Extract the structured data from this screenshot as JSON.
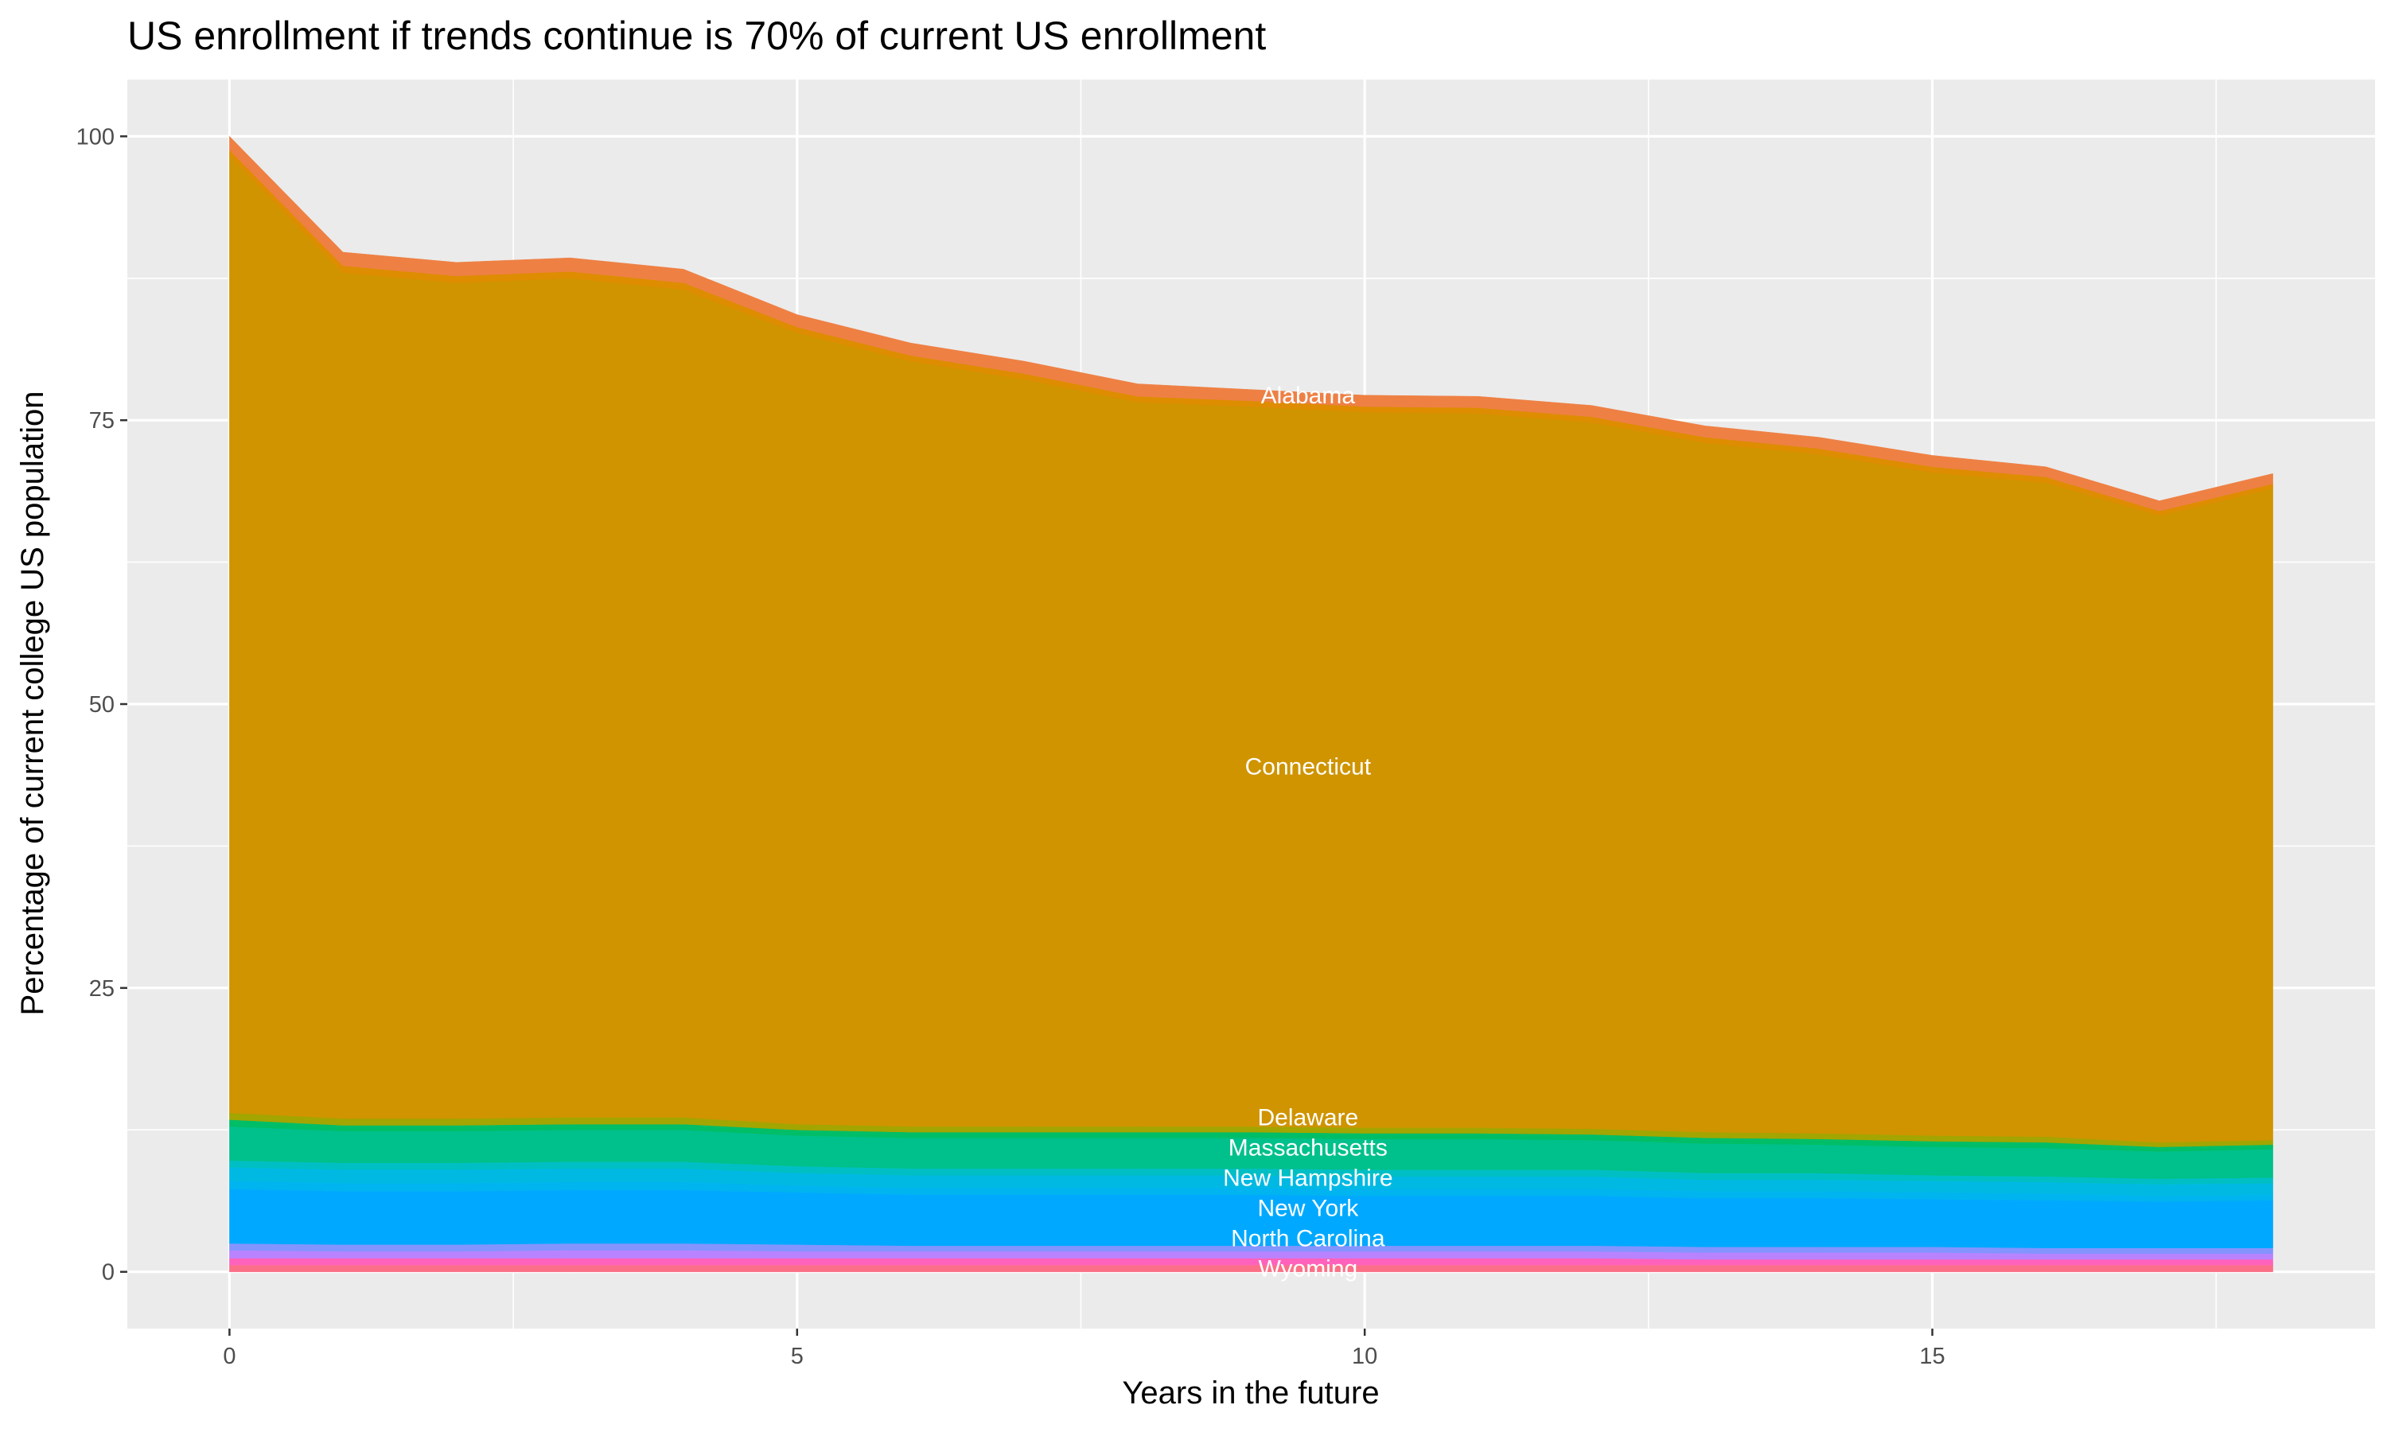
{
  "chart_data": {
    "type": "area",
    "stacked": true,
    "title": "US enrollment if trends continue is 70% of current US enrollment",
    "xlabel": "Years in the future",
    "ylabel": "Percentage of current college US population",
    "xlim": [
      -0.9,
      18.9
    ],
    "ylim": [
      -5,
      105
    ],
    "xticks": [
      0,
      5,
      10,
      15
    ],
    "yticks": [
      0,
      25,
      50,
      75,
      100
    ],
    "grid": true,
    "legend": "none",
    "background": "#EBEBEB",
    "x": [
      0,
      1,
      2,
      3,
      4,
      5,
      6,
      7,
      8,
      9,
      10,
      11,
      12,
      13,
      14,
      15,
      16,
      17,
      18
    ],
    "series": [
      {
        "name": "Wyoming",
        "color": "#FB7088",
        "values": [
          0.6,
          0.6,
          0.6,
          0.6,
          0.6,
          0.6,
          0.6,
          0.6,
          0.6,
          0.6,
          0.6,
          0.6,
          0.6,
          0.6,
          0.6,
          0.6,
          0.6,
          0.6,
          0.6
        ]
      },
      {
        "color": "#FF62BC",
        "values": [
          0.6,
          0.6,
          0.6,
          0.6,
          0.6,
          0.6,
          0.6,
          0.6,
          0.6,
          0.6,
          0.6,
          0.6,
          0.6,
          0.5,
          0.5,
          0.5,
          0.5,
          0.5,
          0.5
        ]
      },
      {
        "name": "North Carolina",
        "color": "#B983FF",
        "values": [
          0.7,
          0.6,
          0.6,
          0.7,
          0.7,
          0.6,
          0.6,
          0.6,
          0.6,
          0.6,
          0.6,
          0.6,
          0.6,
          0.6,
          0.6,
          0.6,
          0.5,
          0.5,
          0.5
        ]
      },
      {
        "color": "#8494FF",
        "values": [
          0.6,
          0.6,
          0.6,
          0.6,
          0.6,
          0.6,
          0.5,
          0.5,
          0.5,
          0.5,
          0.5,
          0.5,
          0.5,
          0.5,
          0.5,
          0.5,
          0.5,
          0.5,
          0.5
        ]
      },
      {
        "name": "New York",
        "color": "#00A9FF",
        "values": [
          4.8,
          4.7,
          4.7,
          4.7,
          4.7,
          4.6,
          4.5,
          4.5,
          4.5,
          4.5,
          4.4,
          4.4,
          4.4,
          4.3,
          4.3,
          4.2,
          4.2,
          4.1,
          4.2
        ]
      },
      {
        "color": "#00B4EF",
        "values": [
          0.7,
          0.7,
          0.7,
          0.7,
          0.7,
          0.6,
          0.6,
          0.6,
          0.6,
          0.6,
          0.6,
          0.6,
          0.6,
          0.6,
          0.6,
          0.6,
          0.6,
          0.5,
          0.5
        ]
      },
      {
        "name": "New Hampshire",
        "color": "#00B9E3",
        "values": [
          1.2,
          1.2,
          1.2,
          1.2,
          1.2,
          1.1,
          1.1,
          1.1,
          1.1,
          1.1,
          1.1,
          1.1,
          1.1,
          1.0,
          1.0,
          1.0,
          1.0,
          1.0,
          1.0
        ]
      },
      {
        "color": "#00BFC4",
        "values": [
          0.6,
          0.6,
          0.6,
          0.6,
          0.6,
          0.6,
          0.6,
          0.6,
          0.6,
          0.6,
          0.6,
          0.6,
          0.6,
          0.6,
          0.6,
          0.5,
          0.5,
          0.5,
          0.5
        ]
      },
      {
        "name": "Massachusetts",
        "color": "#00C08B",
        "values": [
          3.0,
          2.8,
          2.8,
          2.8,
          2.8,
          2.7,
          2.7,
          2.7,
          2.7,
          2.7,
          2.7,
          2.7,
          2.6,
          2.6,
          2.5,
          2.5,
          2.5,
          2.4,
          2.5
        ]
      },
      {
        "name": "Delaware",
        "color": "#00BE67",
        "values": [
          0.6,
          0.5,
          0.5,
          0.5,
          0.5,
          0.5,
          0.5,
          0.5,
          0.5,
          0.5,
          0.5,
          0.5,
          0.5,
          0.5,
          0.5,
          0.5,
          0.5,
          0.4,
          0.4
        ]
      },
      {
        "color": "#A3A500",
        "values": [
          0.6,
          0.6,
          0.6,
          0.6,
          0.6,
          0.5,
          0.5,
          0.5,
          0.5,
          0.5,
          0.5,
          0.5,
          0.5,
          0.5,
          0.5,
          0.5,
          0.5,
          0.4,
          0.4
        ]
      },
      {
        "name": "Connecticut",
        "color": "#CF9400",
        "values": [
          84.3,
          74.5,
          73.6,
          73.9,
          72.9,
          69.7,
          67.4,
          65.8,
          63.8,
          63.4,
          63.0,
          62.9,
          62.2,
          60.7,
          59.8,
          58.4,
          57.6,
          55.2,
          57.4
        ]
      },
      {
        "color": "#DE8C00",
        "values": [
          0.5,
          0.6,
          0.6,
          0.6,
          0.6,
          0.5,
          0.5,
          0.5,
          0.5,
          0.5,
          0.5,
          0.5,
          0.5,
          0.5,
          0.5,
          0.5,
          0.5,
          0.4,
          0.4
        ]
      },
      {
        "name": "Alabama",
        "color": "#EE8044",
        "values": [
          1.2,
          1.2,
          1.2,
          1.2,
          1.2,
          1.1,
          1.1,
          1.1,
          1.1,
          1.0,
          1.0,
          1.0,
          1.0,
          1.0,
          1.0,
          1.0,
          0.9,
          0.9,
          0.9
        ]
      }
    ],
    "label_x": 9
  }
}
